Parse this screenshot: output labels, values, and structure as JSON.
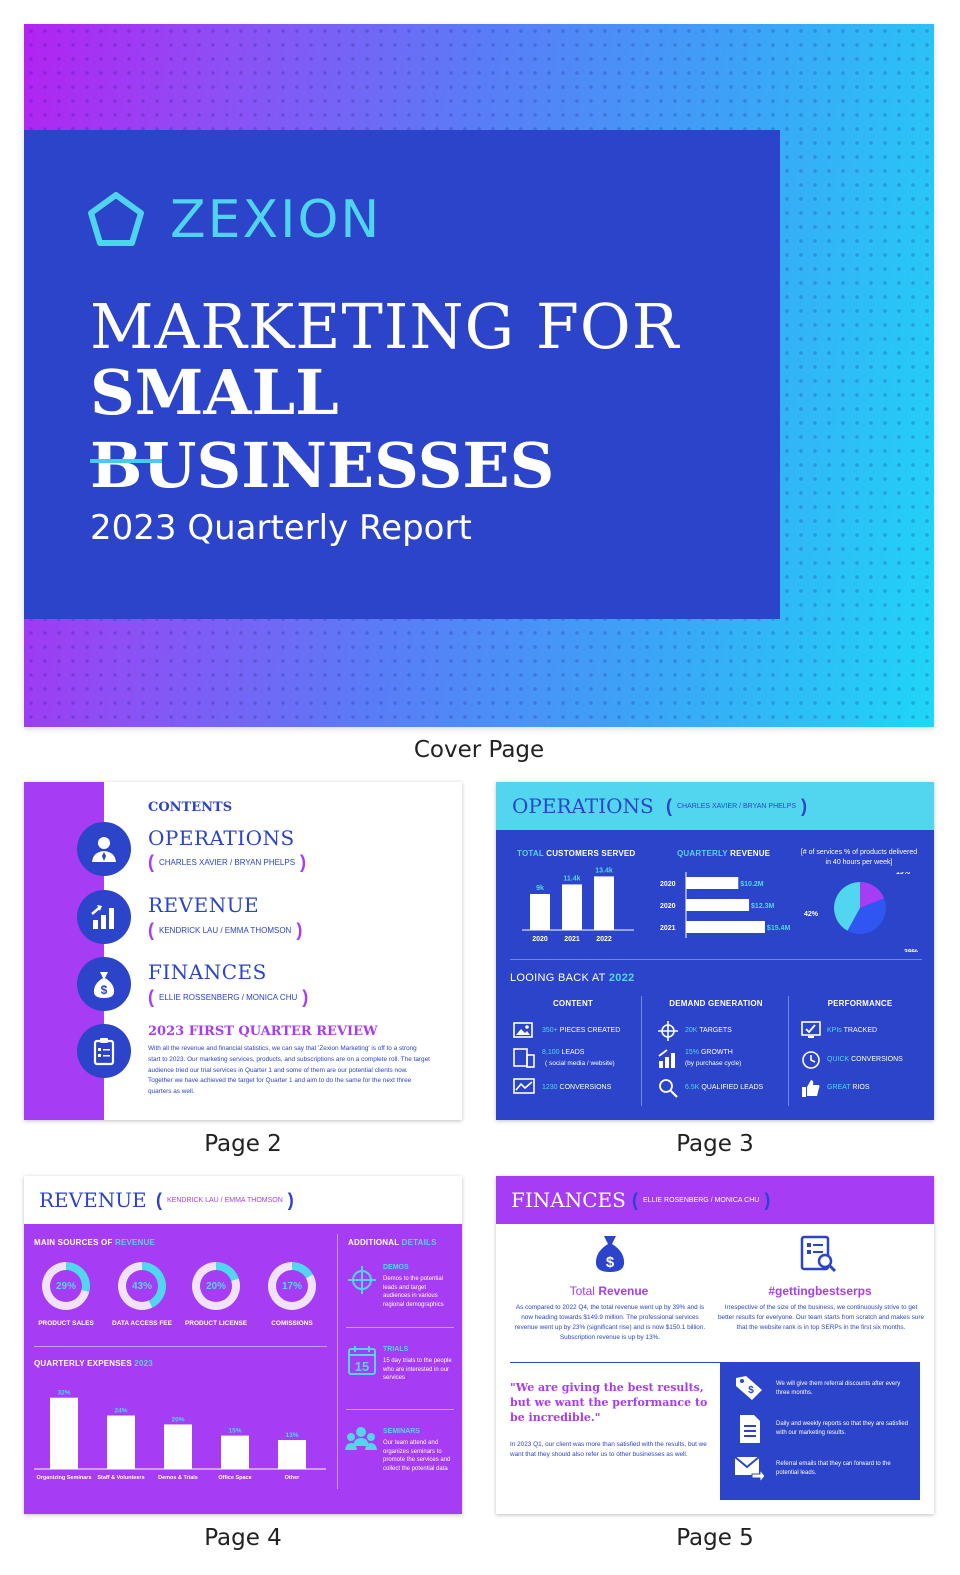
{
  "colors": {
    "blue": "#2b44c9",
    "purple": "#a63cf3",
    "cyan": "#52d6ef",
    "white": "#ffffff"
  },
  "cover": {
    "brand": "ZEXION",
    "title_line1": "MARKETING FOR",
    "title_line2": "SMALL BUSINESSES",
    "subtitle": "2023 Quarterly Report",
    "caption": "Cover Page"
  },
  "page2": {
    "caption": "Page 2",
    "contents_label": "CONTENTS",
    "sections": [
      {
        "title": "OPERATIONS",
        "authors": "CHARLES XAVIER / BRYAN PHELPS",
        "icon": "user-icon"
      },
      {
        "title": "REVENUE",
        "authors": "KENDRICK LAU / EMMA THOMSON",
        "icon": "growth-chart-icon"
      },
      {
        "title": "FINANCES",
        "authors": "ELLIE ROSSENBERG / MONICA CHU",
        "icon": "money-bag-icon"
      }
    ],
    "review_title": "2023 FIRST QUARTER REVIEW",
    "review_text": "With all the revenue and financial statistics, we can say that 'Zexion Marketing' is off to a strong start to 2023. Our marketing services, products, and subscriptions are on a complete roll. The target audience tried our trial services in Quarter 1 and some of them are our potential clients now. Together we have achieved the target for Quarter 1 and aim to do the same for the next three quarters as well."
  },
  "page3": {
    "caption": "Page 3",
    "title": "OPERATIONS",
    "authors": "CHARLES XAVIER / BRYAN PHELPS",
    "customers_label_a": "TOTAL",
    "customers_label_b": "CUSTOMERS SERVED",
    "revenue_label_a": "QUARTERLY",
    "revenue_label_b": "REVENUE",
    "services_note": "[# of services % of products delivered in 40 hours per week]",
    "looking_back_a": "LOOING BACK AT",
    "looking_back_b": "2022",
    "content": {
      "heading": "CONTENT",
      "items": [
        {
          "value": "350+",
          "text": "PIECES CREATED"
        },
        {
          "value": "8,100",
          "text": "LEADS",
          "sub": "( social media / website)"
        },
        {
          "value": "1230",
          "text": "CONVERSIONS"
        }
      ]
    },
    "demand": {
      "heading": "DEMAND GENERATION",
      "items": [
        {
          "value": "20K",
          "text": "TARGETS"
        },
        {
          "value": "15%",
          "text": "GROWTH",
          "sub": "(by purchase cycle)"
        },
        {
          "value": "6.5K",
          "text": "QUALIFIED LEADS"
        }
      ]
    },
    "performance": {
      "heading": "PERFORMANCE",
      "items": [
        {
          "value": "KPIs",
          "text": "TRACKED"
        },
        {
          "value": "QUICK",
          "text": "CONVERSIONS"
        },
        {
          "value": "GREAT",
          "text": "RIOS"
        }
      ]
    }
  },
  "page4": {
    "caption": "Page 4",
    "title": "REVENUE",
    "authors": "KENDRICK LAU / EMMA THOMSON",
    "sources_a": "MAIN SOURCES OF",
    "sources_b": "REVENUE",
    "expenses_a": "QUARTERLY EXPENSES",
    "expenses_b": "2023",
    "additional_a": "ADDITIONAL",
    "additional_b": "DETAILS",
    "details": [
      {
        "title": "DEMOS",
        "text": "Demos to the potential leads and target audiences in various regional demographics",
        "icon": "crosshair-icon"
      },
      {
        "title": "TRIALS",
        "text": "15 day trials to the people who are interested in our services",
        "icon": "calendar-icon"
      },
      {
        "title": "SEMINARS",
        "text": "Our team attend and organizes seminars to promote the services and collect the potential data",
        "icon": "group-icon"
      }
    ]
  },
  "page5": {
    "caption": "Page 5",
    "title": "FINANCES",
    "authors": "ELLIE ROSENBERG / MONICA CHU",
    "revenue_a": "Total",
    "revenue_b": "Revenue",
    "revenue_text": "As compared to 2022 Q4, the total revenue went up by 39% and is now heading towards $149.9 million. The professional services revenue went up by 23% (significant rise) and is now $150.1 billion. Subscription revenue is up by 13%.",
    "hashtag": "#gettingbestserps",
    "hashtag_text": "Irrespective of the size of the business, we continuously strive to get better results for everyone. Our team starts from scratch and makes sure that the website rank is in top SERPs in the first six months.",
    "quote": "\"We are giving the best results, but we want the performance to be incredible.\"",
    "quote_text": "In 2023 Q1, our client was more than satisfied with the results, but we want that they should also refer us to other businesses as well.",
    "benefits": [
      {
        "text": "We will give them referral discounts after every three months.",
        "icon": "tag-icon"
      },
      {
        "text": "Daily and weekly reports so that they are satisfied with our marketing results.",
        "icon": "document-icon"
      },
      {
        "text": "Referral emails that they can forward to the potential leads.",
        "icon": "email-icon"
      }
    ]
  },
  "chart_data": [
    {
      "type": "bar",
      "title": "TOTAL CUSTOMERS SERVED",
      "categories": [
        "2020",
        "2021",
        "2022"
      ],
      "values": [
        9,
        11.4,
        13.4
      ],
      "labels": [
        "9k",
        "11.4k",
        "13.4k"
      ],
      "ylim": [
        0,
        14
      ]
    },
    {
      "type": "bar",
      "orientation": "horizontal",
      "title": "QUARTERLY REVENUE",
      "categories": [
        "2020",
        "2020",
        "2021"
      ],
      "values": [
        10.2,
        12.3,
        15.4
      ],
      "labels": [
        "$10.2M",
        "$12.3M",
        "$15.4M"
      ],
      "xlim": [
        0,
        16
      ]
    },
    {
      "type": "pie",
      "title": "[# of services % of products delivered in 40 hours per week]",
      "values": [
        19,
        39,
        42
      ],
      "labels": [
        "19%",
        "39%",
        "42%"
      ],
      "colors": [
        "#a63cf3",
        "#2f55f2",
        "#52d6ef"
      ]
    },
    {
      "type": "pie",
      "title": "MAIN SOURCES OF REVENUE",
      "categories": [
        "PRODUCT SALES",
        "DATA ACCESS FEE",
        "PRODUCT LICENSE",
        "COMISSIONS"
      ],
      "values": [
        29,
        43,
        20,
        17
      ],
      "labels": [
        "29%",
        "43%",
        "20%",
        "17%"
      ]
    },
    {
      "type": "bar",
      "title": "QUARTERLY EXPENSES 2023",
      "categories": [
        "Organizing Seminars",
        "Staff & Volunteers",
        "Demos & Trials",
        "Office Space",
        "Other"
      ],
      "values": [
        32,
        24,
        20,
        15,
        13
      ],
      "labels": [
        "32%",
        "24%",
        "20%",
        "15%",
        "13%"
      ],
      "ylim": [
        0,
        35
      ]
    }
  ]
}
